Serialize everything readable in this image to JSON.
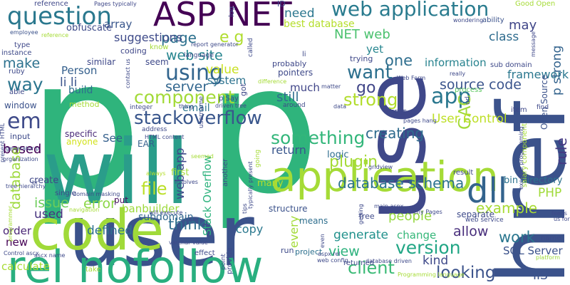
{
  "words": [
    {
      "text": "p",
      "color": "#2fb47c"
    },
    {
      "text": "p",
      "color": "#2fb47c"
    },
    {
      "text": "user",
      "color": "#3b528b"
    },
    {
      "text": "will",
      "color": "#2a9d8a"
    },
    {
      "text": "href",
      "color": "#3b528b"
    },
    {
      "text": "use",
      "color": "#3f4889"
    },
    {
      "text": "code",
      "color": "#a0da39"
    },
    {
      "text": "rel nofollow",
      "color": "#29af7f"
    },
    {
      "text": "application",
      "color": "#a5db36"
    },
    {
      "text": "ASP NET",
      "color": "#440154"
    },
    {
      "text": "question",
      "color": "#2a788e"
    },
    {
      "text": "web application",
      "color": "#297b8e"
    },
    {
      "text": "dll",
      "color": "#33638d"
    },
    {
      "text": "stackoverflow",
      "color": "#39568c"
    },
    {
      "text": "using",
      "color": "#32658e"
    },
    {
      "text": "component",
      "color": "#a2da37"
    },
    {
      "text": "something",
      "color": "#32b67a"
    },
    {
      "text": "database schema",
      "color": "#2c728e"
    },
    {
      "text": "version",
      "color": "#21a685"
    },
    {
      "text": "client",
      "color": "#3aba76"
    },
    {
      "text": "looking",
      "color": "#3b528b"
    },
    {
      "text": "app",
      "color": "#2a778e"
    },
    {
      "text": "strong",
      "color": "#b2dd2d"
    },
    {
      "text": "want",
      "color": "#2d708e"
    },
    {
      "text": "file",
      "color": "#bbdf27"
    },
    {
      "text": "think",
      "color": "#2e6d8e"
    },
    {
      "text": "example",
      "color": "#a8db34"
    },
    {
      "text": "plugin",
      "color": "#a5db36"
    },
    {
      "text": "em",
      "color": "#3e4a89"
    },
    {
      "text": "way",
      "color": "#2b758e"
    },
    {
      "text": "server",
      "color": "#31668e"
    },
    {
      "text": "source code",
      "color": "#3a548c"
    },
    {
      "text": "creating",
      "color": "#2f6b8e"
    },
    {
      "text": "web site",
      "color": "#25848e"
    },
    {
      "text": "page",
      "color": "#2d718e"
    },
    {
      "text": "e g",
      "color": "#b0dd2f"
    },
    {
      "text": "go",
      "color": "#404588"
    },
    {
      "text": "one",
      "color": "#2e6e8e"
    },
    {
      "text": "need",
      "color": "#2a768e"
    },
    {
      "text": "best database",
      "color": "#b5de2b"
    },
    {
      "text": "NET web",
      "color": "#4ac16d"
    },
    {
      "text": "GAC",
      "color": "#a2da37"
    },
    {
      "text": "User Control",
      "color": "#bddf26"
    },
    {
      "text": "rule",
      "color": "#443983"
    },
    {
      "text": "PHP",
      "color": "#a0da39"
    },
    {
      "text": "work",
      "color": "#2a768e"
    },
    {
      "text": "allow",
      "color": "#472d7b"
    },
    {
      "text": "people",
      "color": "#95d840"
    },
    {
      "text": "view",
      "color": "#2db27d"
    },
    {
      "text": "make",
      "color": "#2c718e"
    },
    {
      "text": "value",
      "color": "#c8e020"
    },
    {
      "text": "issue",
      "color": "#6ccd5a"
    },
    {
      "text": "error",
      "color": "#8bd646"
    },
    {
      "text": "used",
      "color": "#46327e"
    },
    {
      "text": "defined",
      "color": "#2d708e"
    },
    {
      "text": "IIS",
      "color": "#3b528b"
    },
    {
      "text": "framework",
      "color": "#2a778e"
    },
    {
      "text": "class",
      "color": "#2f6c8e"
    },
    {
      "text": "may",
      "color": "#404688"
    },
    {
      "text": "yet",
      "color": "#25858e"
    },
    {
      "text": "generate",
      "color": "#21918c"
    },
    {
      "text": "kind",
      "color": "#3e4989"
    },
    {
      "text": "copy",
      "color": "#2a788e"
    },
    {
      "text": "SQL Server",
      "color": "#3b528b"
    },
    {
      "text": "based",
      "color": "#440154"
    },
    {
      "text": "database",
      "color": "#9dd93b"
    },
    {
      "text": "calculate",
      "color": "#a8db34"
    },
    {
      "text": "subdomain",
      "color": "#31668e"
    },
    {
      "text": "banbuilder",
      "color": "#9dd93b"
    },
    {
      "text": "Stack Overflow",
      "color": "#2db27d"
    },
    {
      "text": "web app",
      "color": "#3e4989"
    },
    {
      "text": "much",
      "color": "#404588"
    },
    {
      "text": "still",
      "color": "#2e6d8e"
    },
    {
      "text": "return",
      "color": "#39568c"
    },
    {
      "text": "suggestions",
      "color": "#3e4a89"
    },
    {
      "text": "Person",
      "color": "#35608d"
    },
    {
      "text": "li li",
      "color": "#3a548c"
    },
    {
      "text": "array",
      "color": "#39568c"
    },
    {
      "text": "obfuscate",
      "color": "#3e4a89"
    },
    {
      "text": "build",
      "color": "#2e6f8e"
    },
    {
      "text": "system",
      "color": "#2c728e"
    },
    {
      "text": "email",
      "color": "#2b748e"
    },
    {
      "text": "See",
      "color": "#35608d"
    },
    {
      "text": "every",
      "color": "#a2da37"
    },
    {
      "text": "change",
      "color": "#35b779"
    },
    {
      "text": "information",
      "color": "#26828e"
    },
    {
      "text": "p strong",
      "color": "#33638d"
    },
    {
      "text": "order",
      "color": "#482475"
    },
    {
      "text": "new",
      "color": "#440154"
    },
    {
      "text": "create",
      "color": "#3f4788"
    },
    {
      "text": "specific",
      "color": "#482878"
    },
    {
      "text": "first",
      "color": "#a5db36"
    },
    {
      "text": "put",
      "color": "#470e61"
    },
    {
      "text": "seem",
      "color": "#3e4989"
    },
    {
      "text": "coding",
      "color": "#3f4788"
    },
    {
      "text": "similar",
      "color": "#3f4889"
    },
    {
      "text": "method",
      "color": "#a5db36"
    },
    {
      "text": "window",
      "color": "#3b528b"
    },
    {
      "text": "instance",
      "color": "#3e4a89"
    },
    {
      "text": "reference",
      "color": "#3f4889"
    },
    {
      "text": "type",
      "color": "#3f4889"
    },
    {
      "text": "employee",
      "color": "#3b528b"
    },
    {
      "text": "ruby",
      "color": "#3e4989"
    },
    {
      "text": "able",
      "color": "#3e4989"
    },
    {
      "text": "input",
      "color": "#3e4a89"
    },
    {
      "text": "anyone",
      "color": "#d2e21b"
    },
    {
      "text": "EAR",
      "color": "#35608d"
    },
    {
      "text": "bin directory",
      "color": "#2c728e"
    },
    {
      "text": "many",
      "color": "#b5de2b"
    },
    {
      "text": "logic",
      "color": "#2e6d8e"
    },
    {
      "text": "Open Source",
      "color": "#3b528b"
    },
    {
      "text": "item",
      "color": "#3f4889"
    },
    {
      "text": "structure",
      "color": "#3b528b"
    },
    {
      "text": "means",
      "color": "#2e6e8e"
    },
    {
      "text": "free",
      "color": "#3e4989"
    },
    {
      "text": "separate",
      "color": "#3e4a89"
    },
    {
      "text": "name",
      "color": "#3e4a89"
    },
    {
      "text": "run",
      "color": "#3e4a89"
    },
    {
      "text": "project",
      "color": "#2d708e"
    },
    {
      "text": "Pages typically",
      "color": "#3f4889"
    },
    {
      "text": "Good Open",
      "color": "#a5db36"
    },
    {
      "text": "ability",
      "color": "#3b528b"
    },
    {
      "text": "wondering",
      "color": "#3e4989"
    },
    {
      "text": "message",
      "color": "#3f4889"
    },
    {
      "text": "ID",
      "color": "#3e4989"
    },
    {
      "text": "log",
      "color": "#3e4989"
    },
    {
      "text": "called",
      "color": "#3e4989"
    },
    {
      "text": "li",
      "color": "#3e4989"
    },
    {
      "text": "probably",
      "color": "#3f4889"
    },
    {
      "text": "pointers",
      "color": "#3e4989"
    },
    {
      "text": "trying",
      "color": "#3f4889"
    },
    {
      "text": "sub domain",
      "color": "#3e4989"
    },
    {
      "text": "process",
      "color": "#5ec962"
    },
    {
      "text": "url",
      "color": "#3e4989"
    },
    {
      "text": "find",
      "color": "#3e4989"
    },
    {
      "text": "EDIT",
      "color": "#3e4989"
    },
    {
      "text": "best",
      "color": "#3f4889"
    },
    {
      "text": "result",
      "color": "#3e4989"
    },
    {
      "text": "web service",
      "color": "#3e4989"
    },
    {
      "text": "address",
      "color": "#3e4989"
    },
    {
      "text": "involves",
      "color": "#3e4989"
    },
    {
      "text": "always",
      "color": "#b5de2b"
    },
    {
      "text": "integer",
      "color": "#3e4989"
    },
    {
      "text": "thing",
      "color": "#3e4989"
    },
    {
      "text": "driven tree",
      "color": "#3e4989"
    },
    {
      "text": "p Say",
      "color": "#3e4989"
    },
    {
      "text": "got",
      "color": "#3e4989"
    },
    {
      "text": "around",
      "color": "#3e4989"
    },
    {
      "text": "matter",
      "color": "#3e4989"
    },
    {
      "text": "really",
      "color": "#3e4989"
    },
    {
      "text": "data",
      "color": "#3e4989"
    },
    {
      "text": "gridview",
      "color": "#3e4989"
    },
    {
      "text": "main aspx",
      "color": "#3e4989"
    },
    {
      "text": "getting",
      "color": "#3e4989"
    },
    {
      "text": "pages hang",
      "color": "#3e4989"
    },
    {
      "text": "hierarchy Pages",
      "color": "#3e4989"
    },
    {
      "text": "feeds",
      "color": "#3e4989"
    },
    {
      "text": "us form",
      "color": "#3e4989"
    },
    {
      "text": "platform",
      "color": "#9dd93b"
    },
    {
      "text": "Control ascx",
      "color": "#3e4989"
    },
    {
      "text": "ascx name",
      "color": "#3e4989"
    },
    {
      "text": "tree hierarchy",
      "color": "#3e4989"
    },
    {
      "text": "single",
      "color": "#3e4989"
    },
    {
      "text": "domain masking",
      "color": "#3e4989"
    },
    {
      "text": "navigation",
      "color": "#a5db36"
    },
    {
      "text": "will execute",
      "color": "#3e4989"
    },
    {
      "text": "varchar value",
      "color": "#3e4989"
    },
    {
      "text": "effect",
      "color": "#3e4989"
    },
    {
      "text": "take",
      "color": "#a5db36"
    },
    {
      "text": "provide",
      "color": "#3e4989"
    },
    {
      "text": "point",
      "color": "#3e4989"
    },
    {
      "text": "aspx rel",
      "color": "#3e4989"
    },
    {
      "text": "web config",
      "color": "#3e4989"
    },
    {
      "text": "database driven",
      "color": "#3e4989"
    },
    {
      "text": "Programming language",
      "color": "#a5db36"
    },
    {
      "text": "returned",
      "color": "#3e4989"
    },
    {
      "text": "even",
      "color": "#3e4989"
    },
    {
      "text": "tips",
      "color": "#3e4989"
    },
    {
      "text": "another",
      "color": "#3e4989"
    },
    {
      "text": "going",
      "color": "#a5db36"
    },
    {
      "text": "username",
      "color": "#3e4989"
    },
    {
      "text": "seemed",
      "color": "#a5db36"
    },
    {
      "text": "HTML content",
      "color": "#3e4989"
    },
    {
      "text": "present HTML",
      "color": "#3e4989"
    },
    {
      "text": "organization",
      "color": "#3e4989"
    },
    {
      "text": "generator p",
      "color": "#3e4989"
    },
    {
      "text": "report generator",
      "color": "#3e4989"
    },
    {
      "text": "contact us",
      "color": "#3e4989"
    },
    {
      "text": "Web Form",
      "color": "#3e4989"
    },
    {
      "text": "salary component",
      "color": "#a5db36"
    },
    {
      "text": "execute programming",
      "color": "#3e4989"
    },
    {
      "text": "typically present",
      "color": "#3e4989"
    },
    {
      "text": "difference",
      "color": "#a5db36"
    },
    {
      "text": "language",
      "color": "#3e4989"
    },
    {
      "text": "br",
      "color": "#3e4989"
    },
    {
      "text": "programmer",
      "color": "#a5db36"
    },
    {
      "text": "reference",
      "color": "#a5db36"
    },
    {
      "text": "know",
      "color": "#a5db36"
    }
  ]
}
